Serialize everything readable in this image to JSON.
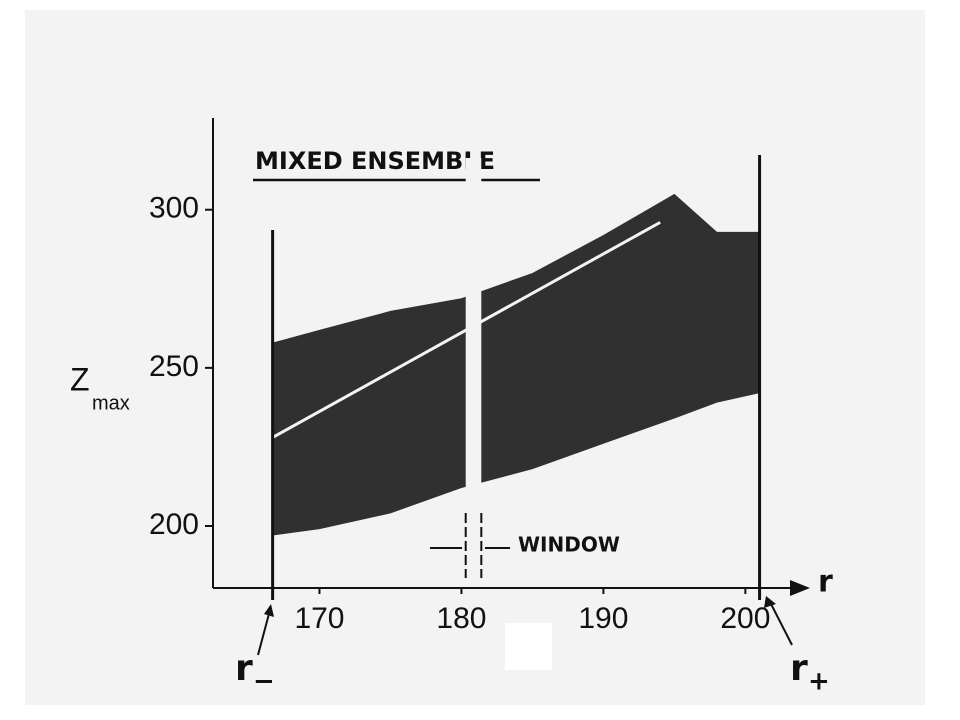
{
  "chart_data": {
    "type": "range-area",
    "title": "MIXED ENSEMBLE",
    "y_label": "Z",
    "y_label_sub": "max",
    "x_label": "r",
    "x": [
      166.7,
      170,
      175,
      180,
      185,
      190,
      195,
      198,
      201
    ],
    "upper": [
      258,
      262,
      268,
      272,
      280,
      292,
      305,
      293,
      293
    ],
    "lower": [
      197,
      199,
      204,
      212,
      218,
      226,
      234,
      239,
      242
    ],
    "color": "#141414",
    "ridge": {
      "x": [
        166.7,
        194
      ],
      "values": [
        228,
        296
      ]
    },
    "r_minus": {
      "value": 166.7,
      "label": "r",
      "sub": "−"
    },
    "r_plus": {
      "value": 201,
      "label": "r",
      "sub": "+"
    },
    "window": {
      "x": [
        180.3,
        181.4
      ],
      "label": "WINDOW"
    },
    "xlim": [
      162.5,
      204.2
    ],
    "ylim": [
      180.4,
      329
    ],
    "xticks": [
      170,
      180,
      190,
      200
    ],
    "yticks": [
      200,
      250,
      300
    ]
  }
}
